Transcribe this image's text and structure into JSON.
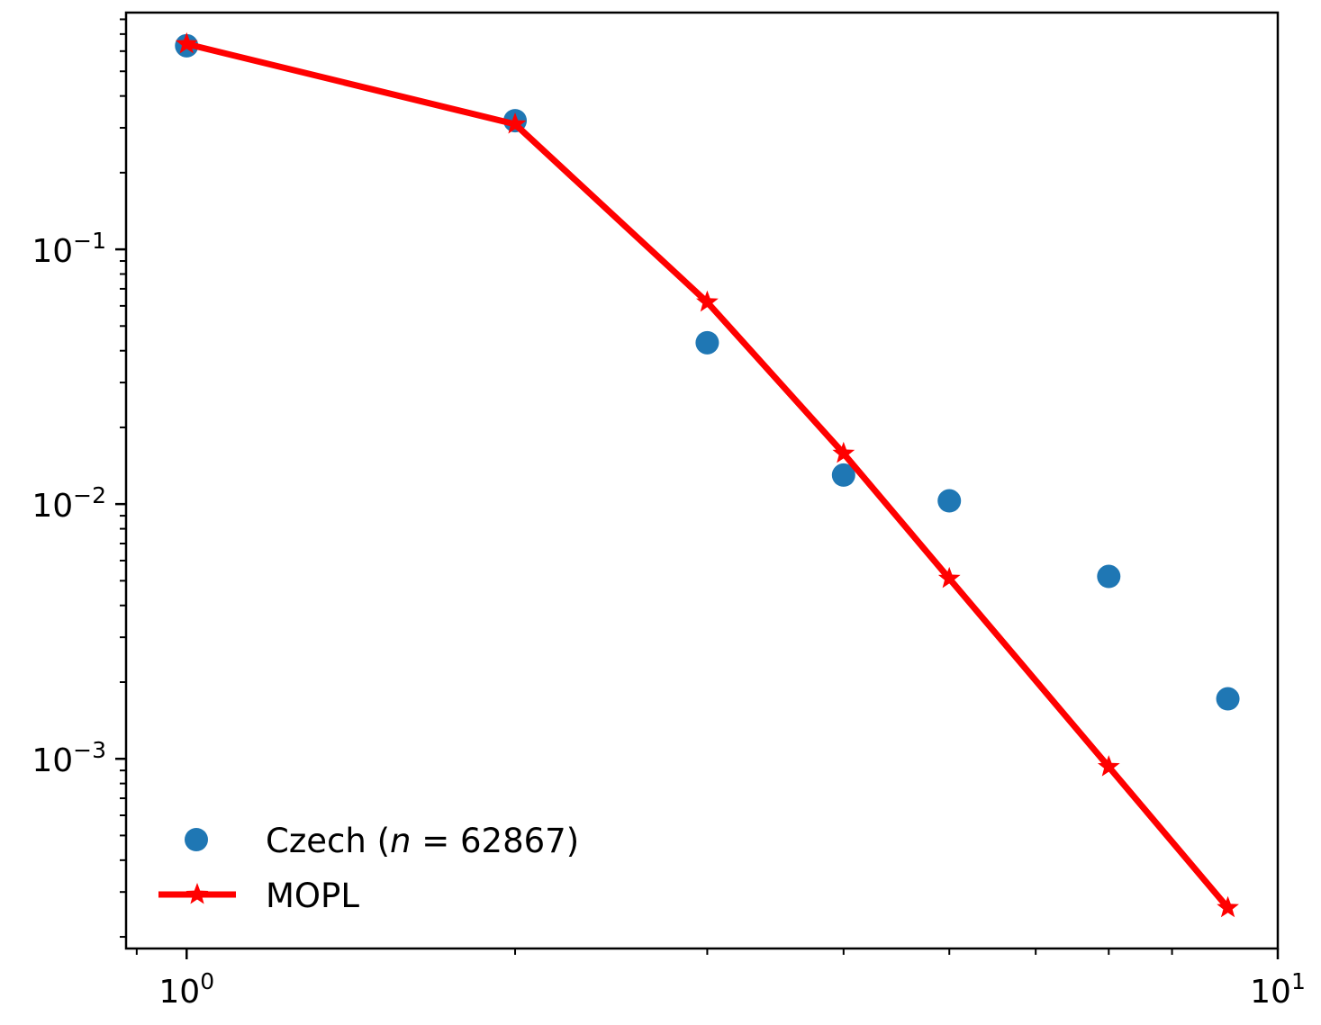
{
  "chart_data": {
    "type": "scatter",
    "xscale": "log",
    "yscale": "log",
    "xlim": [
      0.88,
      10
    ],
    "ylim": [
      0.00018,
      0.85
    ],
    "x_ticks": [
      {
        "value": 1,
        "base": "10",
        "exp": "0"
      },
      {
        "value": 10,
        "base": "10",
        "exp": "1"
      }
    ],
    "y_ticks": [
      {
        "value": 0.1,
        "base": "10",
        "exp": "−1"
      },
      {
        "value": 0.01,
        "base": "10",
        "exp": "−2"
      },
      {
        "value": 0.001,
        "base": "10",
        "exp": "−3"
      }
    ],
    "grid": false,
    "legend_position": "lower-left",
    "series": [
      {
        "name": "Czech (n = 62867)",
        "legend_prefix": "Czech (",
        "legend_var": "n",
        "legend_suffix": " = 62867)",
        "kind": "markers",
        "marker": "circle",
        "color": "#1f77b4",
        "x": [
          1,
          2,
          3,
          4,
          5,
          7,
          9
        ],
        "y": [
          0.63,
          0.32,
          0.043,
          0.013,
          0.0103,
          0.0052,
          0.00172
        ]
      },
      {
        "name": "MOPL",
        "kind": "line",
        "marker": "star",
        "color": "#ff0000",
        "x": [
          1,
          2,
          3,
          4,
          5,
          7,
          9
        ],
        "y": [
          0.64,
          0.31,
          0.062,
          0.0158,
          0.0051,
          0.00093,
          0.00026
        ]
      }
    ]
  }
}
